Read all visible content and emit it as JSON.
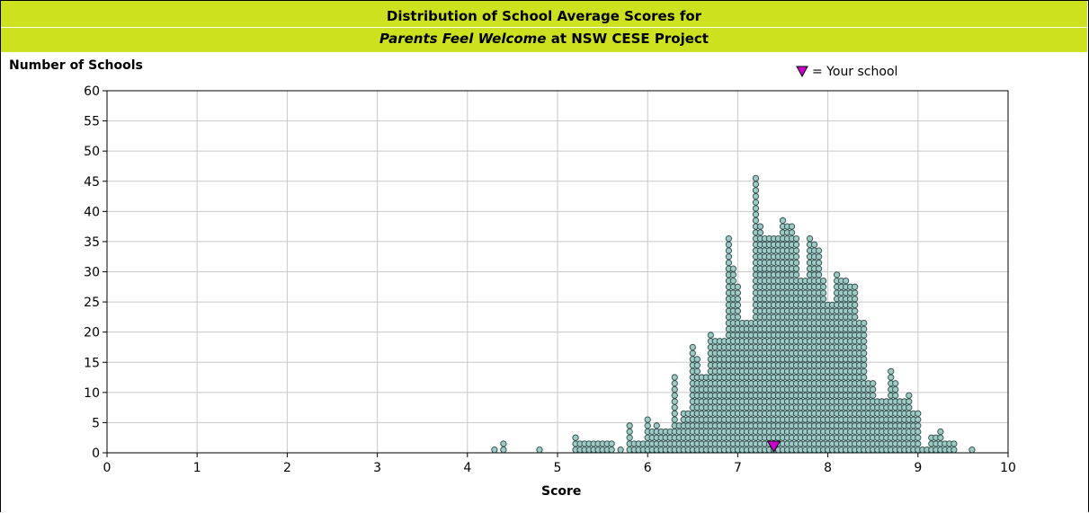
{
  "chart_data": {
    "type": "scatter",
    "subtype": "dot-histogram",
    "title_line1": "Distribution of School Average Scores for",
    "title_line2_italic": "Parents Feel Welcome",
    "title_line2_rest": "at NSW CESE Project",
    "ylabel": "Number of Schools",
    "xlabel": "Score",
    "xlim": [
      0,
      10
    ],
    "ylim": [
      0,
      60
    ],
    "xticks": [
      0,
      1,
      2,
      3,
      4,
      5,
      6,
      7,
      8,
      9,
      10
    ],
    "yticks": [
      0,
      5,
      10,
      15,
      20,
      25,
      30,
      35,
      40,
      45,
      50,
      55,
      60
    ],
    "grid": true,
    "legend_label": "= Your school",
    "legend_position": "top-right",
    "your_school_score": 7.4,
    "colors": {
      "banner": "#cde11f",
      "dots": "#9ec9c5",
      "dot_outline": "#2a4a48",
      "marker": "#cc00cc",
      "grid": "#c8c8c8"
    },
    "bin_width": 0.05,
    "bins": [
      {
        "x": 4.3,
        "count": 1
      },
      {
        "x": 4.4,
        "count": 2
      },
      {
        "x": 4.8,
        "count": 1
      },
      {
        "x": 5.2,
        "count": 3
      },
      {
        "x": 5.25,
        "count": 2
      },
      {
        "x": 5.3,
        "count": 2
      },
      {
        "x": 5.35,
        "count": 2
      },
      {
        "x": 5.4,
        "count": 2
      },
      {
        "x": 5.45,
        "count": 2
      },
      {
        "x": 5.5,
        "count": 2
      },
      {
        "x": 5.55,
        "count": 2
      },
      {
        "x": 5.6,
        "count": 2
      },
      {
        "x": 5.7,
        "count": 1
      },
      {
        "x": 5.8,
        "count": 5
      },
      {
        "x": 5.85,
        "count": 2
      },
      {
        "x": 5.9,
        "count": 2
      },
      {
        "x": 5.95,
        "count": 2
      },
      {
        "x": 6.0,
        "count": 6
      },
      {
        "x": 6.05,
        "count": 4
      },
      {
        "x": 6.1,
        "count": 5
      },
      {
        "x": 6.15,
        "count": 4
      },
      {
        "x": 6.2,
        "count": 4
      },
      {
        "x": 6.25,
        "count": 4
      },
      {
        "x": 6.3,
        "count": 13
      },
      {
        "x": 6.35,
        "count": 5
      },
      {
        "x": 6.4,
        "count": 7
      },
      {
        "x": 6.45,
        "count": 7
      },
      {
        "x": 6.5,
        "count": 18
      },
      {
        "x": 6.55,
        "count": 16
      },
      {
        "x": 6.6,
        "count": 13
      },
      {
        "x": 6.65,
        "count": 13
      },
      {
        "x": 6.7,
        "count": 20
      },
      {
        "x": 6.75,
        "count": 19
      },
      {
        "x": 6.8,
        "count": 19
      },
      {
        "x": 6.85,
        "count": 19
      },
      {
        "x": 6.9,
        "count": 36
      },
      {
        "x": 6.95,
        "count": 31
      },
      {
        "x": 7.0,
        "count": 28
      },
      {
        "x": 7.05,
        "count": 22
      },
      {
        "x": 7.1,
        "count": 22
      },
      {
        "x": 7.15,
        "count": 22
      },
      {
        "x": 7.2,
        "count": 46
      },
      {
        "x": 7.25,
        "count": 38
      },
      {
        "x": 7.3,
        "count": 36
      },
      {
        "x": 7.35,
        "count": 36
      },
      {
        "x": 7.4,
        "count": 36
      },
      {
        "x": 7.45,
        "count": 36
      },
      {
        "x": 7.5,
        "count": 39
      },
      {
        "x": 7.55,
        "count": 38
      },
      {
        "x": 7.6,
        "count": 38
      },
      {
        "x": 7.65,
        "count": 36
      },
      {
        "x": 7.7,
        "count": 29
      },
      {
        "x": 7.75,
        "count": 29
      },
      {
        "x": 7.8,
        "count": 36
      },
      {
        "x": 7.85,
        "count": 35
      },
      {
        "x": 7.9,
        "count": 34
      },
      {
        "x": 7.95,
        "count": 29
      },
      {
        "x": 8.0,
        "count": 25
      },
      {
        "x": 8.05,
        "count": 25
      },
      {
        "x": 8.1,
        "count": 30
      },
      {
        "x": 8.15,
        "count": 29
      },
      {
        "x": 8.2,
        "count": 29
      },
      {
        "x": 8.25,
        "count": 28
      },
      {
        "x": 8.3,
        "count": 28
      },
      {
        "x": 8.35,
        "count": 22
      },
      {
        "x": 8.4,
        "count": 22
      },
      {
        "x": 8.45,
        "count": 12
      },
      {
        "x": 8.5,
        "count": 12
      },
      {
        "x": 8.55,
        "count": 9
      },
      {
        "x": 8.6,
        "count": 9
      },
      {
        "x": 8.65,
        "count": 9
      },
      {
        "x": 8.7,
        "count": 14
      },
      {
        "x": 8.75,
        "count": 12
      },
      {
        "x": 8.8,
        "count": 9
      },
      {
        "x": 8.85,
        "count": 9
      },
      {
        "x": 8.9,
        "count": 10
      },
      {
        "x": 8.95,
        "count": 7
      },
      {
        "x": 9.0,
        "count": 7
      },
      {
        "x": 9.05,
        "count": 1
      },
      {
        "x": 9.1,
        "count": 1
      },
      {
        "x": 9.15,
        "count": 3
      },
      {
        "x": 9.2,
        "count": 3
      },
      {
        "x": 9.25,
        "count": 4
      },
      {
        "x": 9.3,
        "count": 2
      },
      {
        "x": 9.35,
        "count": 2
      },
      {
        "x": 9.4,
        "count": 2
      },
      {
        "x": 9.6,
        "count": 1
      }
    ]
  }
}
